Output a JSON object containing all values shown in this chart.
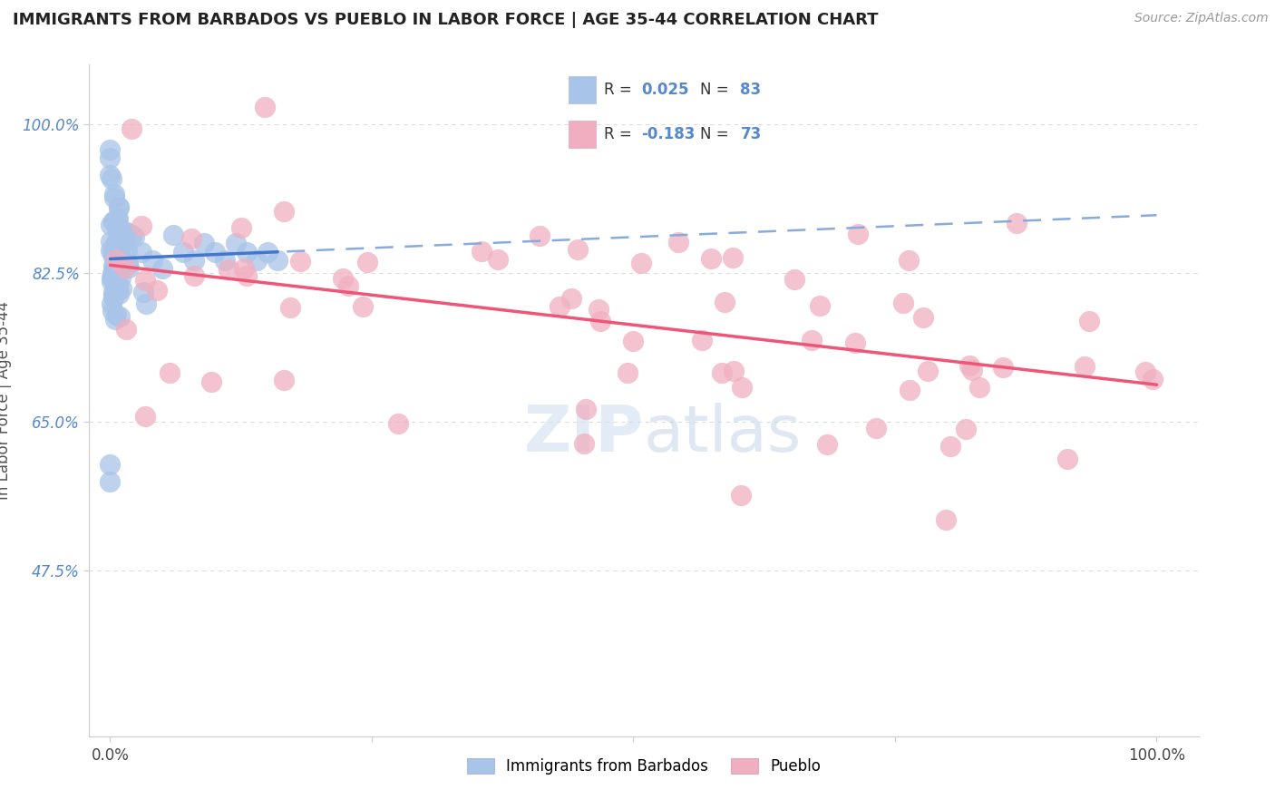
{
  "title": "IMMIGRANTS FROM BARBADOS VS PUEBLO IN LABOR FORCE | AGE 35-44 CORRELATION CHART",
  "source": "Source: ZipAtlas.com",
  "ylabel": "In Labor Force | Age 35-44",
  "r_barbados": 0.025,
  "n_barbados": 83,
  "r_pueblo": -0.183,
  "n_pueblo": 73,
  "xtick_positions": [
    0.0,
    0.25,
    0.5,
    0.75,
    1.0
  ],
  "xtick_labels": [
    "0.0%",
    "",
    "",
    "",
    "100.0%"
  ],
  "ytick_values": [
    0.475,
    0.65,
    0.825,
    1.0
  ],
  "ytick_labels": [
    "47.5%",
    "65.0%",
    "82.5%",
    "100.0%"
  ],
  "xlim": [
    -0.02,
    1.04
  ],
  "ylim": [
    0.28,
    1.07
  ],
  "barbados_color": "#a8c4e8",
  "pueblo_color": "#f0afc0",
  "barbados_line_solid_color": "#4477cc",
  "barbados_line_dash_color": "#88aadd",
  "pueblo_line_color": "#ee5577",
  "bg_color": "#ffffff",
  "grid_color": "#dddddd",
  "tick_color": "#5588cc",
  "watermark": "ZIPatlas"
}
